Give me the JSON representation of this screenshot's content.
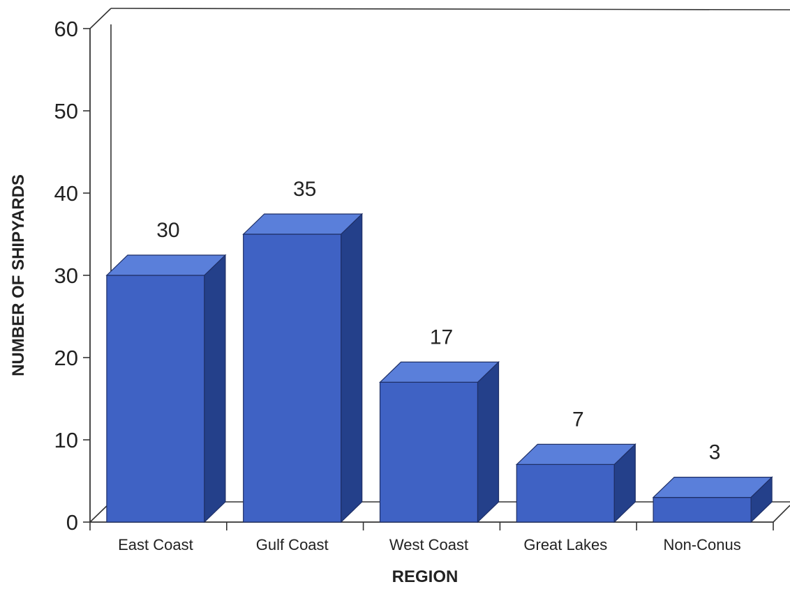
{
  "chart_data": {
    "type": "bar",
    "categories": [
      "East Coast",
      "Gulf Coast",
      "West Coast",
      "Great Lakes",
      "Non-Conus"
    ],
    "values": [
      30,
      35,
      17,
      7,
      3
    ],
    "data_labels": [
      "30",
      "35",
      "17",
      "7",
      "3"
    ],
    "xlabel": "REGION",
    "ylabel": "NUMBER OF SHIPYARDS",
    "ylim": [
      0,
      60
    ],
    "yticks": [
      "0",
      "10",
      "20",
      "30",
      "40",
      "50",
      "60"
    ],
    "grid": false,
    "legend": "none",
    "style": "3d",
    "colors": {
      "bar_front": "#3f62c4",
      "bar_top": "#5a7fda",
      "bar_side": "#24408a",
      "axis": "#333333"
    }
  }
}
